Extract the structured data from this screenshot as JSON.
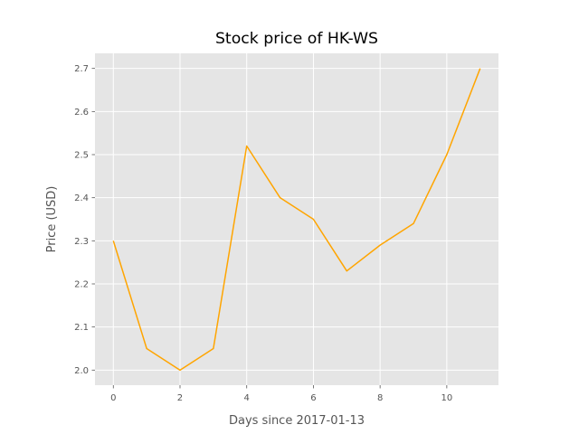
{
  "chart_data": {
    "type": "line",
    "title": "Stock price of HK-WS",
    "xlabel": "Days since 2017-01-13",
    "ylabel": "Price (USD)",
    "x": [
      0,
      1,
      2,
      3,
      4,
      5,
      6,
      7,
      8,
      9,
      10,
      11
    ],
    "series": [
      {
        "values": [
          2.3,
          2.05,
          2.0,
          2.05,
          2.52,
          2.4,
          2.35,
          2.23,
          2.29,
          2.34,
          2.5,
          2.7
        ],
        "color": "#ffa500"
      }
    ],
    "xlim": [
      -0.55,
      11.55
    ],
    "ylim": [
      1.965,
      2.735
    ],
    "xticks": [
      0,
      2,
      4,
      6,
      8,
      10
    ],
    "xtick_labels": [
      "0",
      "2",
      "4",
      "6",
      "8",
      "10"
    ],
    "yticks": [
      2.0,
      2.1,
      2.2,
      2.3,
      2.4,
      2.5,
      2.6,
      2.7
    ],
    "ytick_labels": [
      "2.0",
      "2.1",
      "2.2",
      "2.3",
      "2.4",
      "2.5",
      "2.6",
      "2.7"
    ],
    "grid": true,
    "style": "ggplot",
    "background_color": "#e5e5e5",
    "grid_color": "#ffffff"
  }
}
